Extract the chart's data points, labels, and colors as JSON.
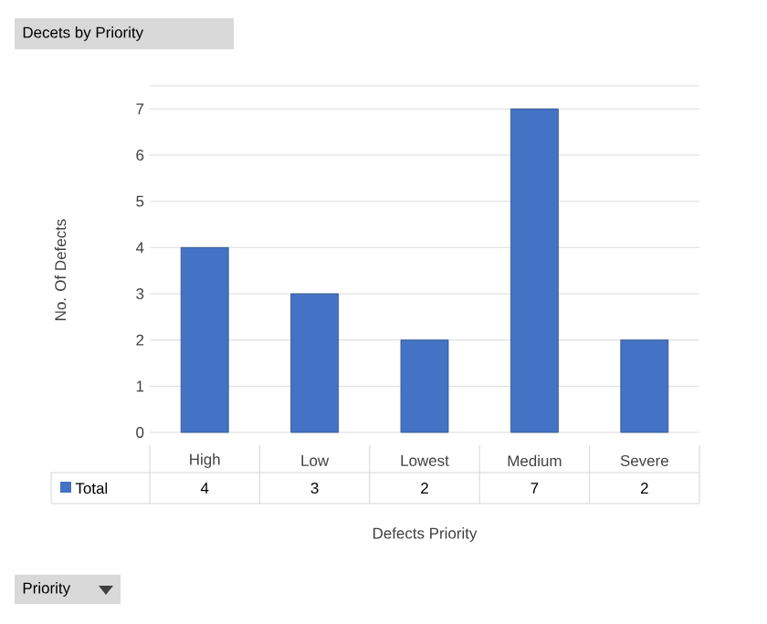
{
  "chart_data": {
    "type": "bar",
    "title": "Decets by Priority",
    "xlabel": "Defects Priority",
    "ylabel": "No. Of Defects",
    "categories": [
      "High",
      "Low",
      "Lowest",
      "Medium",
      "Severe"
    ],
    "series": [
      {
        "name": "Total",
        "color": "#4472c4",
        "values": [
          4,
          3,
          2,
          7,
          2
        ]
      }
    ],
    "ylim": [
      0,
      7.5
    ],
    "yticks": [
      0,
      1,
      2,
      3,
      4,
      5,
      6,
      7,
      {
        "value": 7.5,
        "label": null
      }
    ],
    "grid": "y",
    "legend": "bottom",
    "data_labels": true,
    "annotations": [
      "Priority"
    ]
  }
}
